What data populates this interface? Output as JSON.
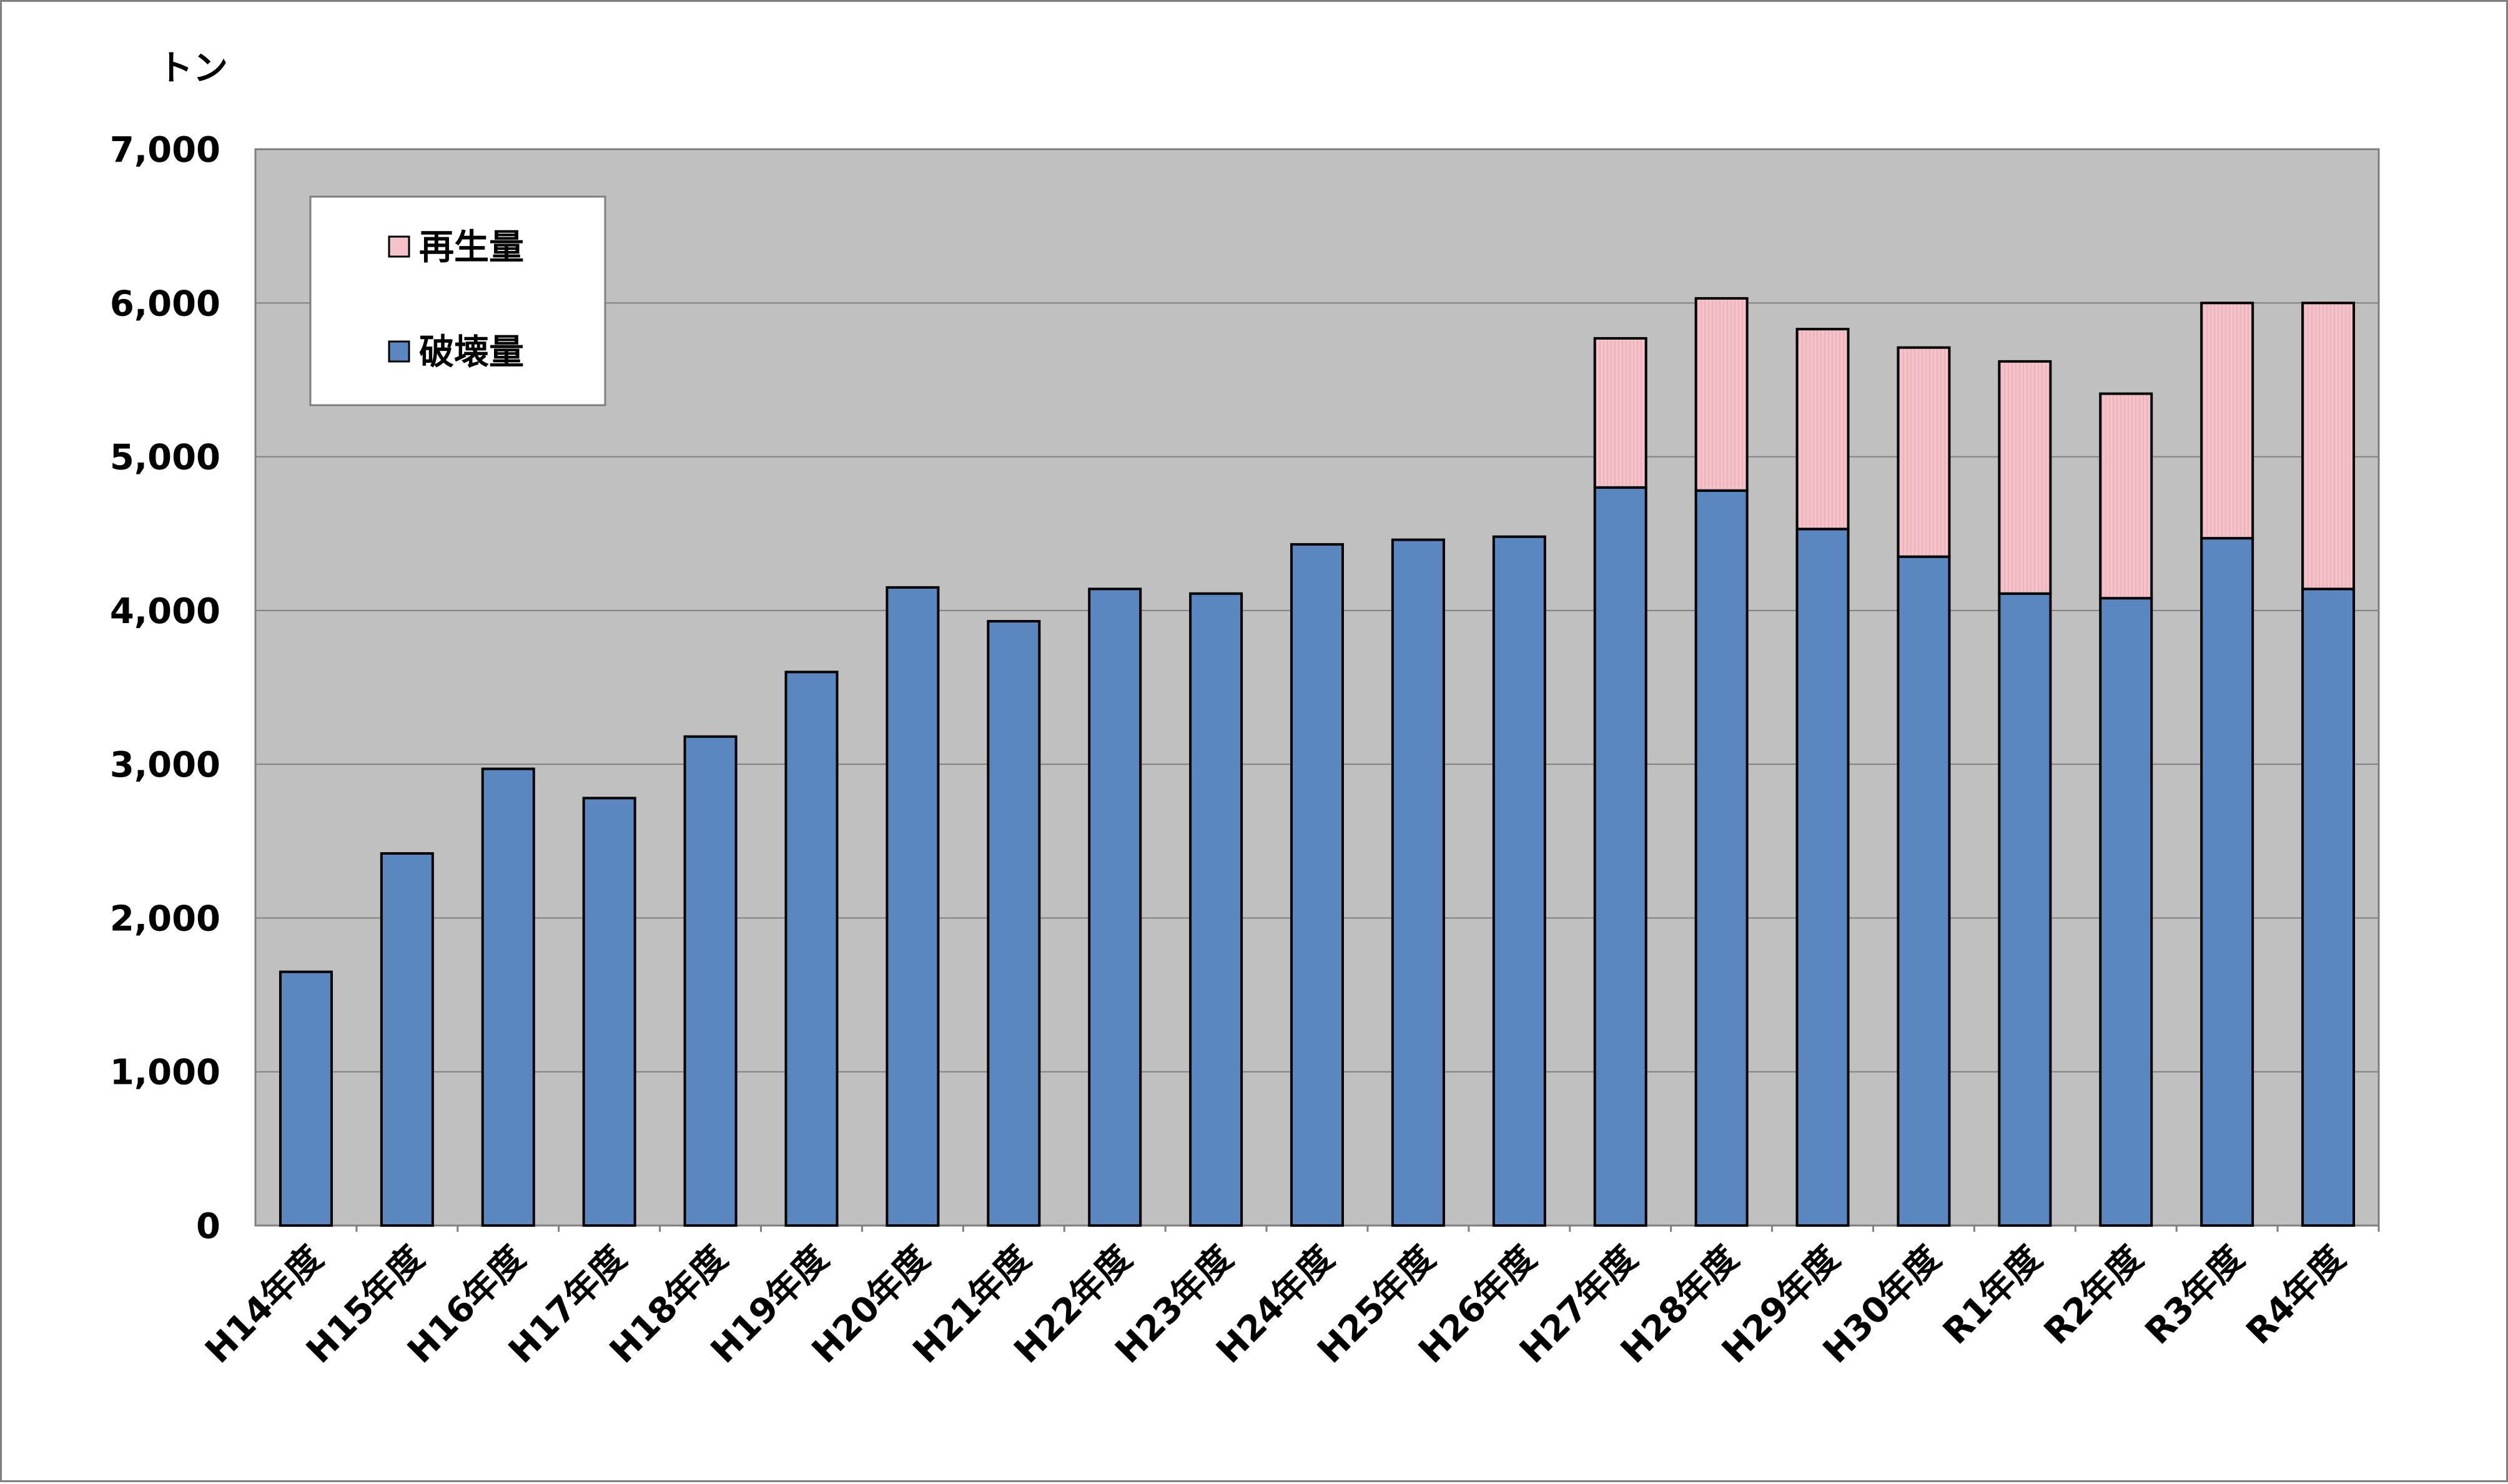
{
  "chart_data": {
    "type": "bar",
    "stacked": true,
    "unit_label": "トン",
    "categories": [
      "H14年度",
      "H15年度",
      "H16年度",
      "H17年度",
      "H18年度",
      "H19年度",
      "H20年度",
      "H21年度",
      "H22年度",
      "H23年度",
      "H24年度",
      "H25年度",
      "H26年度",
      "H27年度",
      "H28年度",
      "H29年度",
      "H30年度",
      "R1年度",
      "R2年度",
      "R3年度",
      "R4年度"
    ],
    "series": [
      {
        "name": "破壊量",
        "color": "#5b87c0",
        "values": [
          1650,
          2420,
          2970,
          2780,
          3180,
          3600,
          4150,
          3930,
          4140,
          4110,
          4430,
          4460,
          4480,
          4800,
          4780,
          4530,
          4350,
          4110,
          4080,
          4470,
          4140
        ]
      },
      {
        "name": "再生量",
        "color": "#f4c2c8",
        "values": [
          0,
          0,
          0,
          0,
          0,
          0,
          0,
          0,
          0,
          0,
          0,
          0,
          0,
          970,
          1250,
          1300,
          1360,
          1510,
          1330,
          1530,
          1860
        ]
      }
    ],
    "ylim": [
      0,
      7000
    ],
    "yticks": [
      "0",
      "1,000",
      "2,000",
      "3,000",
      "4,000",
      "5,000",
      "6,000",
      "7,000"
    ],
    "ytick_values": [
      0,
      1000,
      2000,
      3000,
      4000,
      5000,
      6000,
      7000
    ],
    "grid": true,
    "plot_background": "#c0c0c0",
    "legend_position": "top-left"
  }
}
